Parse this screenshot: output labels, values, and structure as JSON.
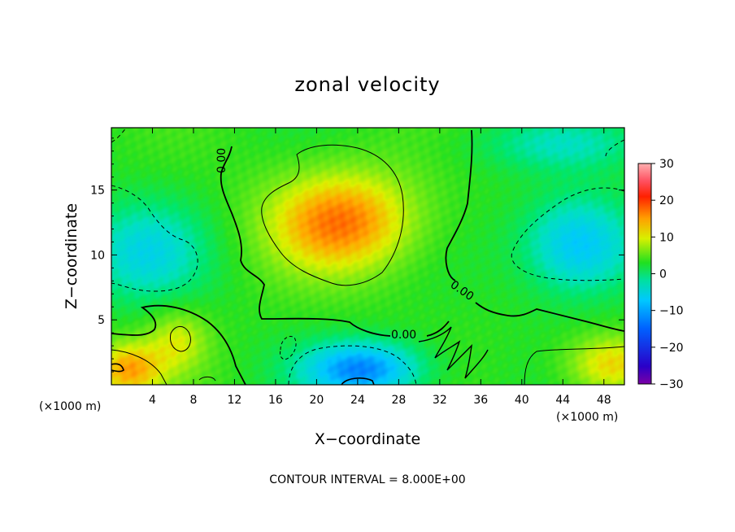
{
  "chart_data": {
    "type": "heatmap",
    "title": "zonal velocity",
    "xlabel": "X−coordinate",
    "ylabel": "Z−coordinate",
    "x_unit_left": "(×1000 m)",
    "x_unit_right": "(×1000 m)",
    "xlim": [
      0,
      50
    ],
    "ylim": [
      0,
      19.8
    ],
    "xticks": [
      4,
      8,
      12,
      16,
      20,
      24,
      28,
      32,
      36,
      40,
      44,
      48
    ],
    "xtick_labels": [
      "4",
      "8",
      "12",
      "16",
      "20",
      "24",
      "28",
      "32",
      "36",
      "40",
      "44",
      "48"
    ],
    "yticks": [
      5,
      10,
      15
    ],
    "ytick_labels": [
      "5",
      "10",
      "15"
    ],
    "colorbar": {
      "min": -30,
      "max": 30,
      "ticks": [
        30,
        20,
        10,
        0,
        -10,
        -20,
        -30
      ],
      "tick_labels": [
        "30",
        "20",
        "10",
        "0",
        "−10",
        "−20",
        "−30"
      ]
    },
    "contour_interval_text": "CONTOUR INTERVAL = 8.000E+00",
    "zero_contour_labels": [
      "0.00",
      "0.00",
      "0.00"
    ],
    "features": [
      {
        "name": "upper positive jet core",
        "x": 22.5,
        "z": 12.6,
        "value": 14,
        "radius_x": 7.5,
        "radius_z": 4.0
      },
      {
        "name": "east negative cell",
        "x": 45.5,
        "z": 10.8,
        "value": -13,
        "radius_x": 5.5,
        "radius_z": 3.8
      },
      {
        "name": "west negative cell",
        "x": 3.0,
        "z": 10.2,
        "value": -9,
        "radius_x": 6.0,
        "radius_z": 3.8
      },
      {
        "name": "lower center negative cell",
        "x": 24.5,
        "z": 1.2,
        "value": -16,
        "radius_x": 6.0,
        "radius_z": 2.2
      },
      {
        "name": "southwest positive cell",
        "x": 1.5,
        "z": 1.2,
        "value": 12,
        "radius_x": 3.5,
        "radius_z": 2.2
      },
      {
        "name": "southeast positive cell",
        "x": 48.5,
        "z": 1.6,
        "value": 10,
        "radius_x": 4.5,
        "radius_z": 2.4
      },
      {
        "name": "west lower positive lobe",
        "x": 6.5,
        "z": 3.5,
        "value": 7,
        "radius_x": 3.0,
        "radius_z": 2.5
      },
      {
        "name": "top-right negative band",
        "x": 44,
        "z": 18.5,
        "value": -6,
        "radius_x": 9.0,
        "radius_z": 2.0
      }
    ]
  }
}
